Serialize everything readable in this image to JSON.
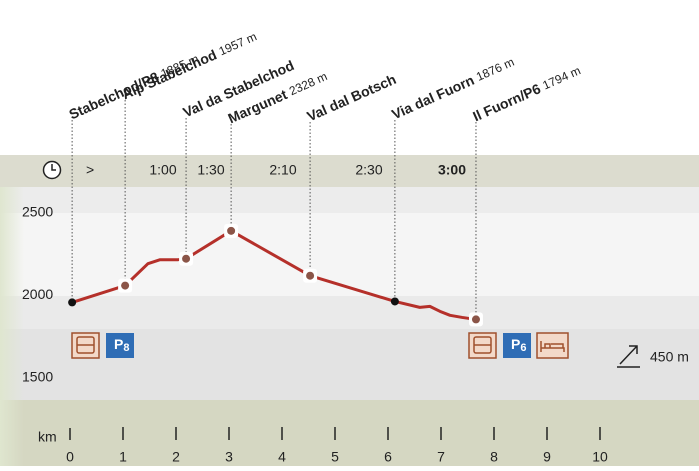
{
  "chart_data": {
    "type": "line",
    "color": "#b5302a",
    "x": [
      0.04,
      1.04,
      1.47,
      1.7,
      2.04,
      2.19,
      3.04,
      4.53,
      6.13,
      6.6,
      6.79,
      6.98,
      7.17,
      7.4,
      7.66
    ],
    "values": [
      1958,
      2060,
      2193,
      2217,
      2217,
      2223,
      2392,
      2120,
      1964,
      1928,
      1934,
      1904,
      1880,
      1867,
      1855
    ],
    "markers": [
      "dot",
      "ring",
      null,
      null,
      null,
      "ring",
      "ring",
      "ring",
      "dot",
      null,
      null,
      null,
      null,
      null,
      "ring"
    ],
    "waypoints": [
      {
        "name": "Stabelchod/P8",
        "elevation": 1885,
        "elevation_label": "1885 m"
      },
      {
        "name": "Alp Stabelchod",
        "elevation": 1957,
        "elevation_label": "1957 m"
      },
      {
        "name": "Val da Stabelchod"
      },
      {
        "name": "Margunet",
        "elevation": 2328,
        "elevation_label": "2328 m"
      },
      {
        "name": "Val dal Botsch"
      },
      {
        "name": "Via dal Fuorn",
        "elevation": 1876,
        "elevation_label": "1876 m"
      },
      {
        "name": "Il Fuorn/P6",
        "elevation": 1794,
        "elevation_label": "1794 m"
      }
    ],
    "times": [
      ">",
      "1:00",
      "1:30",
      "2:10",
      "2:30",
      "3:00"
    ],
    "parking": [
      {
        "letter": "P",
        "number": "8"
      },
      {
        "letter": "P",
        "number": "6"
      }
    ],
    "ascent": "450 m",
    "x_label": "km",
    "xlim": [
      0,
      10
    ],
    "xticks": [
      0,
      1,
      2,
      3,
      4,
      5,
      6,
      7,
      8,
      9,
      10
    ],
    "ylim": [
      1500,
      2500
    ],
    "yticks": [
      1500,
      2000,
      2500
    ],
    "grid": false
  }
}
